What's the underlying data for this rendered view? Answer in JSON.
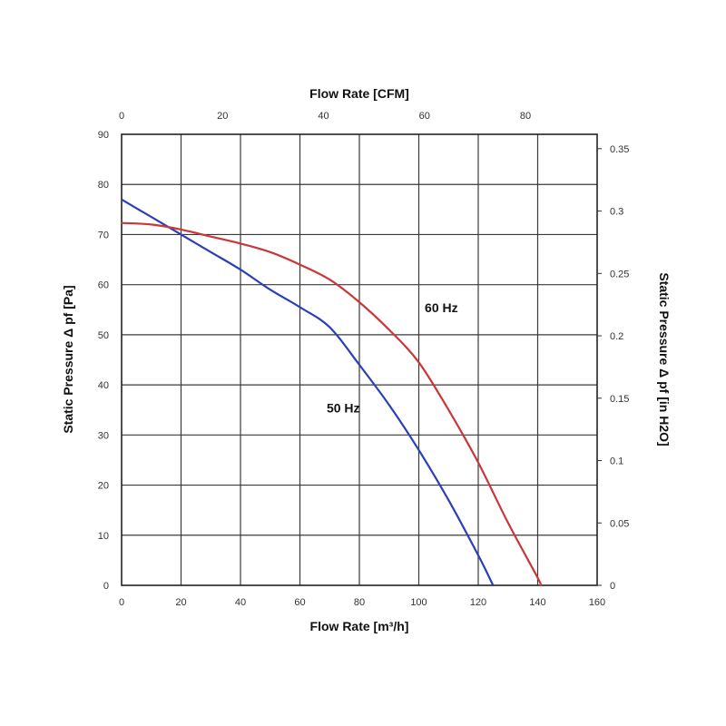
{
  "chart_data": {
    "type": "line",
    "xlabel": "Flow Rate [m³/h]",
    "x2label": "Flow Rate [CFM]",
    "ylabel": "Static Pressure Δ pf [Pa]",
    "y2label": "Static Pressure Δ pf [in H2O]",
    "xlim": [
      0,
      160
    ],
    "ylim": [
      0,
      90
    ],
    "x2lim": [
      0,
      94.2
    ],
    "y2lim": [
      0,
      0.3615
    ],
    "x_ticks": [
      "0",
      "20",
      "40",
      "60",
      "80",
      "100",
      "120",
      "140",
      "160"
    ],
    "y_ticks": [
      "0",
      "10",
      "20",
      "30",
      "40",
      "50",
      "60",
      "70",
      "80",
      "90"
    ],
    "x2_ticks": [
      {
        "value": 0,
        "label": "0"
      },
      {
        "value": 20,
        "label": "20"
      },
      {
        "value": 40,
        "label": "40"
      },
      {
        "value": 60,
        "label": "60"
      },
      {
        "value": 80,
        "label": "80"
      }
    ],
    "y2_ticks": [
      {
        "value": 0,
        "label": "0"
      },
      {
        "value": 0.05,
        "label": "0.05"
      },
      {
        "value": 0.1,
        "label": "0.1"
      },
      {
        "value": 0.15,
        "label": "0.15"
      },
      {
        "value": 0.2,
        "label": "0.2"
      },
      {
        "value": 0.25,
        "label": "0.25"
      },
      {
        "value": 0.3,
        "label": "0.3"
      },
      {
        "value": 0.35,
        "label": "0.35"
      }
    ],
    "grid": true,
    "series": [
      {
        "name": "50 Hz",
        "color": "#2b3fb8",
        "x": [
          0,
          10,
          20,
          30,
          40,
          50,
          60,
          70,
          80,
          90,
          100,
          110,
          120,
          125
        ],
        "y": [
          77,
          73.5,
          70,
          66.5,
          63,
          59,
          55.5,
          51.5,
          44,
          36,
          27,
          17,
          6,
          0
        ]
      },
      {
        "name": "60 Hz",
        "color": "#c8373a",
        "x": [
          0,
          10,
          20,
          30,
          40,
          50,
          60,
          70,
          80,
          90,
          100,
          110,
          120,
          130,
          140,
          141
        ],
        "y": [
          72.3,
          72,
          71,
          69.6,
          68.2,
          66.5,
          64,
          61,
          56.5,
          51,
          44.5,
          35,
          24.5,
          12.5,
          1.5,
          0
        ]
      }
    ],
    "annotations": [
      {
        "text": "60 Hz",
        "x": 102,
        "y": 54.5
      },
      {
        "text": "50 Hz",
        "x": 69,
        "y": 34.5
      }
    ]
  }
}
